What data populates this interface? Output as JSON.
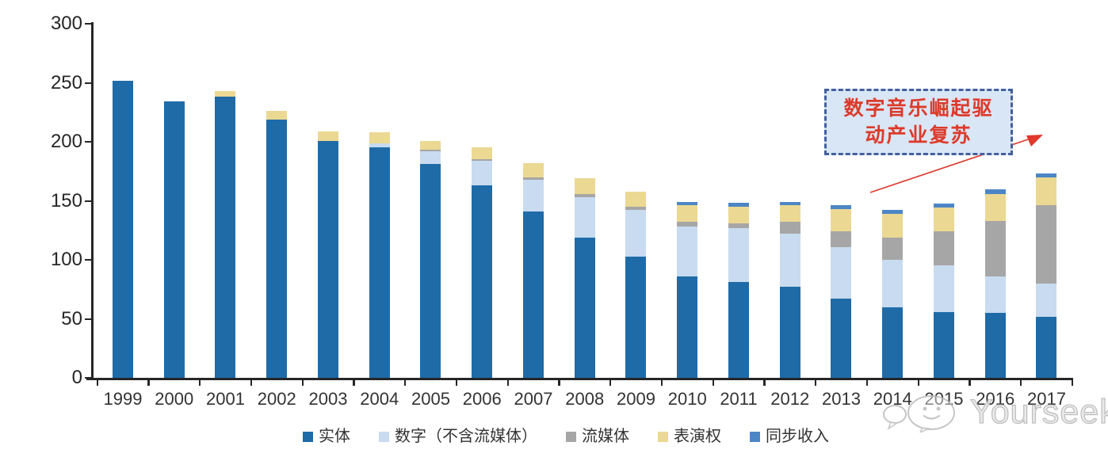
{
  "chart_data": {
    "type": "bar",
    "stacked": true,
    "title": "",
    "xlabel": "",
    "ylabel": "",
    "ylim": [
      0,
      300
    ],
    "y_ticks": [
      300,
      250,
      200,
      150,
      100,
      50,
      0
    ],
    "grid": false,
    "legend_position": "bottom",
    "x": [
      "1999",
      "2000",
      "2001",
      "2002",
      "2003",
      "2004",
      "2005",
      "2006",
      "2007",
      "2008",
      "2009",
      "2010",
      "2011",
      "2012",
      "2013",
      "2014",
      "2015",
      "2016",
      "2017"
    ],
    "series": [
      {
        "key": "physical",
        "name": "实体",
        "color": "#1E6BA8",
        "values": [
          252,
          234,
          238,
          219,
          201,
          195,
          181,
          163,
          141,
          119,
          103,
          86,
          81,
          77,
          67,
          60,
          56,
          55,
          52
        ]
      },
      {
        "key": "digital-ex-streaming",
        "name": "数字（不含流媒体）",
        "color": "#C8DBF0",
        "values": [
          0,
          0,
          0,
          0,
          0,
          4,
          11,
          21,
          27,
          34,
          39,
          42,
          46,
          45,
          44,
          40,
          39,
          31,
          28
        ]
      },
      {
        "key": "streaming",
        "name": "流媒体",
        "color": "#A6A6A6",
        "values": [
          0,
          0,
          0,
          0,
          0,
          0,
          1,
          1,
          2,
          3,
          3,
          4,
          4,
          10,
          13,
          19,
          29,
          47,
          66
        ]
      },
      {
        "key": "performance-rights",
        "name": "表演权",
        "color": "#EBD892",
        "values": [
          0,
          0,
          5,
          7,
          8,
          9,
          8,
          10,
          12,
          13,
          13,
          14,
          14,
          14,
          19,
          20,
          20,
          23,
          24
        ]
      },
      {
        "key": "sync-revenue",
        "name": "同步收入",
        "color": "#4C86C6",
        "values": [
          0,
          0,
          0,
          0,
          0,
          0,
          0,
          0,
          0,
          0,
          0,
          3,
          3,
          3,
          3,
          3,
          4,
          4,
          3
        ]
      }
    ]
  },
  "annotation": {
    "line1": "数字音乐崛起驱",
    "line2": "动产业复苏",
    "border_color": "#44609F",
    "fill_color": "#D9E6F5",
    "text_color": "#DD3A2B",
    "arrow_color": "#E0392B"
  },
  "watermark": {
    "text": "Yourseeker",
    "color": "#B5B5B5"
  },
  "axis": {
    "line_color": "#262626",
    "tick_label_color": "#333333"
  }
}
